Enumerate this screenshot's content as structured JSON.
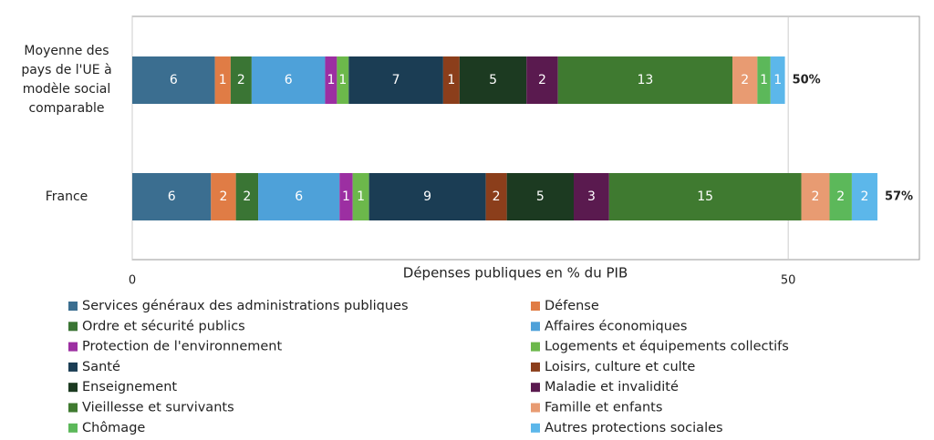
{
  "chart_data": {
    "type": "stacked-bar-horizontal",
    "xlabel": "Dépenses publiques en % du PIB",
    "categories": [
      "Moyenne des pays de l'UE à modèle social comparable",
      "France"
    ],
    "xlim": [
      0,
      60
    ],
    "xticks": [
      0,
      50
    ],
    "grid": true,
    "series": [
      {
        "name": "Services généraux des administrations publiques",
        "color": "#3b6e90",
        "values": [
          6.3,
          6.0
        ],
        "value_labels": [
          "6",
          "6"
        ]
      },
      {
        "name": "Défense",
        "color": "#e07c45",
        "values": [
          1.2,
          1.9
        ],
        "value_labels": [
          "1",
          "2"
        ]
      },
      {
        "name": "Ordre et sécurité publics",
        "color": "#3a7534",
        "values": [
          1.6,
          1.7
        ],
        "value_labels": [
          "2",
          "2"
        ]
      },
      {
        "name": "Affaires économiques",
        "color": "#4ea1d9",
        "values": [
          5.6,
          6.2
        ],
        "value_labels": [
          "6",
          "6"
        ]
      },
      {
        "name": "Protection de l'environnement",
        "color": "#9c2fa2",
        "values": [
          0.9,
          1.0
        ],
        "value_labels": [
          "1",
          "1"
        ]
      },
      {
        "name": "Logements et équipements collectifs",
        "color": "#6cb84b",
        "values": [
          0.9,
          1.25
        ],
        "value_labels": [
          "1",
          "1"
        ]
      },
      {
        "name": "Santé",
        "color": "#1b3d54",
        "values": [
          7.2,
          8.9
        ],
        "value_labels": [
          "7",
          "9"
        ]
      },
      {
        "name": "Loisirs, culture et culte",
        "color": "#8b3e1b",
        "values": [
          1.25,
          1.6
        ],
        "value_labels": [
          "1",
          "2"
        ]
      },
      {
        "name": "Enseignement",
        "color": "#1c3a21",
        "values": [
          5.1,
          5.1
        ],
        "value_labels": [
          "5",
          "5"
        ]
      },
      {
        "name": "Maladie et invalidité",
        "color": "#5a1a4f",
        "values": [
          2.4,
          2.7
        ],
        "value_labels": [
          "2",
          "3"
        ]
      },
      {
        "name": "Vieillesse et survivants",
        "color": "#3f7a30",
        "values": [
          13.3,
          14.65
        ],
        "value_labels": [
          "13",
          "15"
        ]
      },
      {
        "name": "Famille et enfants",
        "color": "#e89b72",
        "values": [
          1.9,
          2.15
        ],
        "value_labels": [
          "2",
          "2"
        ]
      },
      {
        "name": "Chômage",
        "color": "#5cb85a",
        "values": [
          1.0,
          1.7
        ],
        "value_labels": [
          "1",
          "2"
        ]
      },
      {
        "name": "Autres protections sociales",
        "color": "#5cb7ea",
        "values": [
          1.1,
          1.95
        ],
        "value_labels": [
          "1",
          "2"
        ]
      }
    ],
    "totals": {
      "values": [
        50,
        57
      ],
      "value_labels": [
        "50%",
        "57%"
      ]
    }
  }
}
